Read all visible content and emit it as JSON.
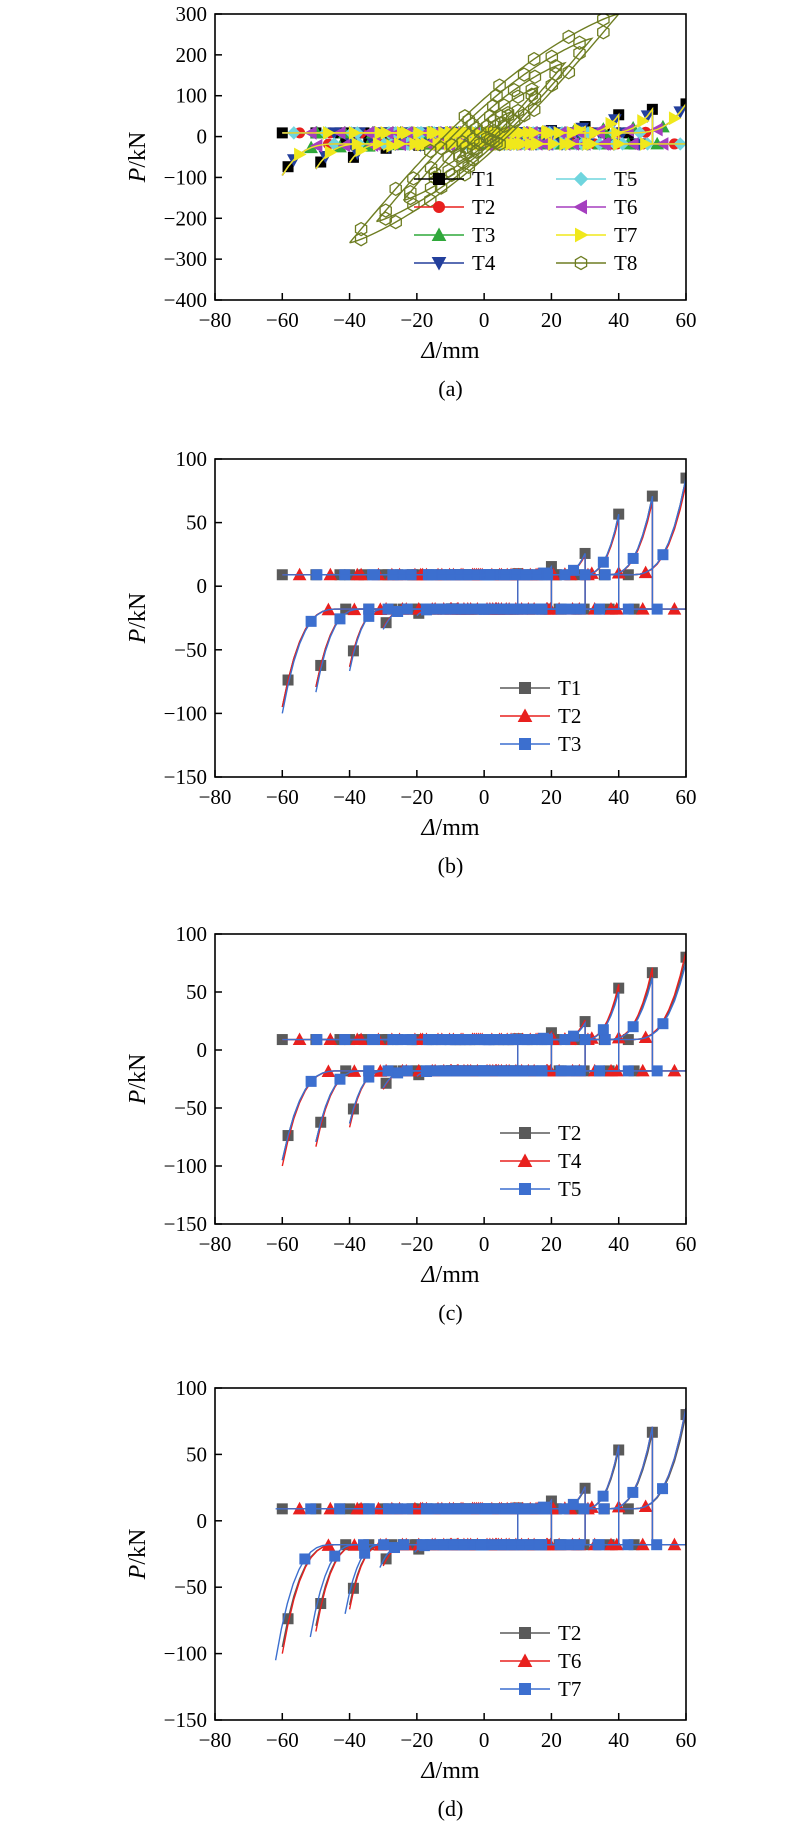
{
  "colors": {
    "T1": "#000000",
    "T2": "#e8201e",
    "T3": "#2fa83a",
    "T4": "#233f9c",
    "T5": "#6fd5de",
    "T6": "#a53fbf",
    "T7": "#f0e81c",
    "T8": "#6e7d22",
    "gray": "#5a5a5a",
    "red": "#e8201e",
    "blue": "#3c6fcf"
  },
  "chart_data": [
    {
      "panel": "(a)",
      "type": "line",
      "xlabel": "Δ/mm",
      "ylabel": "P/kN",
      "xlim": [
        -80,
        60
      ],
      "ylim": [
        -400,
        300
      ],
      "xticks": [
        "−80",
        "−60",
        "−40",
        "−20",
        "0",
        "20",
        "40",
        "60"
      ],
      "yticks": [
        "300",
        "200",
        "100",
        "0",
        "−100",
        "−200",
        "−300",
        "−400"
      ],
      "legend": "inside-bottom-right",
      "series": [
        {
          "name": "T1",
          "marker": "square",
          "color": "#000000",
          "envelope": [
            -60,
            -95,
            60,
            80
          ]
        },
        {
          "name": "T2",
          "marker": "circle",
          "color": "#e8201e",
          "envelope": [
            -60,
            -95,
            60,
            80
          ]
        },
        {
          "name": "T3",
          "marker": "triangle-up",
          "color": "#2fa83a",
          "envelope": [
            -60,
            -95,
            60,
            80
          ]
        },
        {
          "name": "T4",
          "marker": "triangle-down",
          "color": "#233f9c",
          "envelope": [
            -60,
            -95,
            60,
            80
          ]
        },
        {
          "name": "T5",
          "marker": "diamond",
          "color": "#6fd5de",
          "envelope": [
            -60,
            -95,
            60,
            80
          ]
        },
        {
          "name": "T6",
          "marker": "triangle-left",
          "color": "#a53fbf",
          "envelope": [
            -60,
            -95,
            60,
            80
          ]
        },
        {
          "name": "T7",
          "marker": "triangle-right",
          "color": "#f0e81c",
          "envelope": [
            -60,
            -95,
            60,
            80
          ]
        },
        {
          "name": "T8",
          "marker": "hexagon-open",
          "color": "#6e7d22",
          "envelope": [
            -40,
            -260,
            40,
            300
          ]
        }
      ]
    },
    {
      "panel": "(b)",
      "type": "line",
      "xlabel": "Δ/mm",
      "ylabel": "P/kN",
      "xlim": [
        -80,
        60
      ],
      "ylim": [
        -150,
        100
      ],
      "xticks": [
        "−80",
        "−60",
        "−40",
        "−20",
        "0",
        "20",
        "40",
        "60"
      ],
      "yticks": [
        "100",
        "50",
        "0",
        "−50",
        "−100",
        "−150"
      ],
      "legend": "inside-bottom-right",
      "series": [
        {
          "name": "T1",
          "marker": "square",
          "color": "#5a5a5a",
          "envelope": [
            -60,
            -95,
            60,
            85
          ]
        },
        {
          "name": "T2",
          "marker": "triangle-up",
          "color": "#e8201e",
          "envelope": [
            -60,
            -95,
            60,
            80
          ]
        },
        {
          "name": "T3",
          "marker": "square",
          "color": "#3c6fcf",
          "envelope": [
            -60,
            -100,
            60,
            85
          ]
        }
      ]
    },
    {
      "panel": "(c)",
      "type": "line",
      "xlabel": "Δ/mm",
      "ylabel": "P/kN",
      "xlim": [
        -80,
        60
      ],
      "ylim": [
        -150,
        100
      ],
      "xticks": [
        "−80",
        "−60",
        "−40",
        "−20",
        "0",
        "20",
        "40",
        "60"
      ],
      "yticks": [
        "100",
        "50",
        "0",
        "−50",
        "−100",
        "−150"
      ],
      "legend": "inside-bottom-right",
      "series": [
        {
          "name": "T2",
          "marker": "square",
          "color": "#5a5a5a",
          "envelope": [
            -60,
            -95,
            60,
            80
          ]
        },
        {
          "name": "T4",
          "marker": "triangle-up",
          "color": "#e8201e",
          "envelope": [
            -60,
            -100,
            60,
            85
          ]
        },
        {
          "name": "T5",
          "marker": "square",
          "color": "#3c6fcf",
          "envelope": [
            -60,
            -95,
            60,
            75
          ]
        }
      ]
    },
    {
      "panel": "(d)",
      "type": "line",
      "xlabel": "Δ/mm",
      "ylabel": "P/kN",
      "xlim": [
        -80,
        60
      ],
      "ylim": [
        -150,
        100
      ],
      "xticks": [
        "−80",
        "−60",
        "−40",
        "−20",
        "0",
        "20",
        "40",
        "60"
      ],
      "yticks": [
        "100",
        "50",
        "0",
        "−50",
        "−100",
        "−150"
      ],
      "legend": "inside-bottom-right",
      "series": [
        {
          "name": "T2",
          "marker": "square",
          "color": "#5a5a5a",
          "envelope": [
            -60,
            -95,
            60,
            80
          ]
        },
        {
          "name": "T6",
          "marker": "triangle-up",
          "color": "#e8201e",
          "envelope": [
            -60,
            -100,
            60,
            85
          ]
        },
        {
          "name": "T7",
          "marker": "square",
          "color": "#3c6fcf",
          "envelope": [
            -62,
            -105,
            60,
            85
          ]
        }
      ]
    }
  ]
}
